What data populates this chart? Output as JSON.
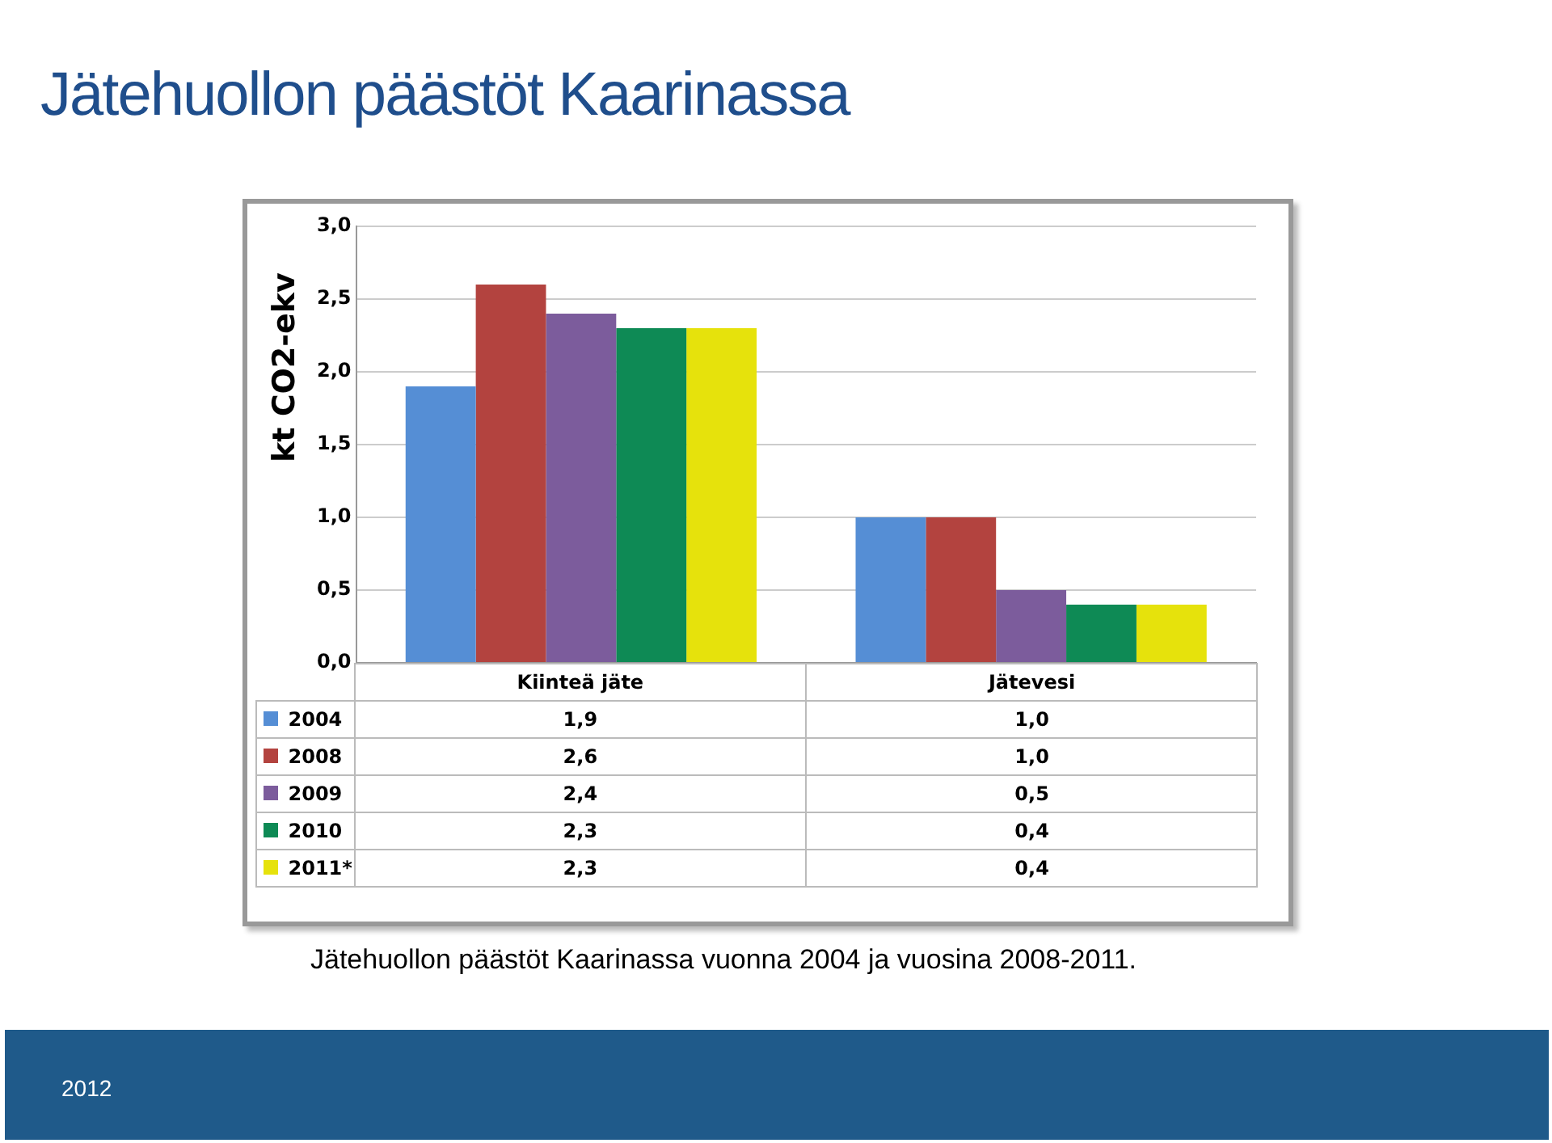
{
  "chart_data": {
    "type": "bar",
    "title": "Jätehuollon päästöt Kaarinassa",
    "ylabel": "kt CO2-ekv",
    "categories": [
      "Kiinteä jäte",
      "Jätevesi"
    ],
    "series": [
      {
        "name": "2004",
        "color": "#558ed5",
        "values": [
          1.9,
          1.0
        ],
        "value_labels": [
          "1,9",
          "1,0"
        ]
      },
      {
        "name": "2008",
        "color": "#b3433f",
        "values": [
          2.6,
          1.0
        ],
        "value_labels": [
          "2,6",
          "1,0"
        ]
      },
      {
        "name": "2009",
        "color": "#7c5c9c",
        "values": [
          2.4,
          0.5
        ],
        "value_labels": [
          "2,4",
          "0,5"
        ]
      },
      {
        "name": "2010",
        "color": "#0e8a55",
        "values": [
          2.3,
          0.4
        ],
        "value_labels": [
          "2,3",
          "0,4"
        ]
      },
      {
        "name": "2011*",
        "color": "#e6e20c",
        "values": [
          2.3,
          0.4
        ],
        "value_labels": [
          "2,3",
          "0,4"
        ]
      }
    ],
    "ylim": [
      0,
      3
    ],
    "yticks": [
      {
        "value": 0,
        "label": "0,0"
      },
      {
        "value": 0.5,
        "label": "0,5"
      },
      {
        "value": 1,
        "label": "1,0"
      },
      {
        "value": 1.5,
        "label": "1,5"
      },
      {
        "value": 2,
        "label": "2,0"
      },
      {
        "value": 2.5,
        "label": "2,5"
      },
      {
        "value": 3,
        "label": "3,0"
      }
    ],
    "grid": "y",
    "legend": "bottom",
    "annotations": [
      "Jätehuollon päästöt Kaarinassa  vuonna 2004 ja vuosina 2008-2011.",
      "2012"
    ]
  }
}
